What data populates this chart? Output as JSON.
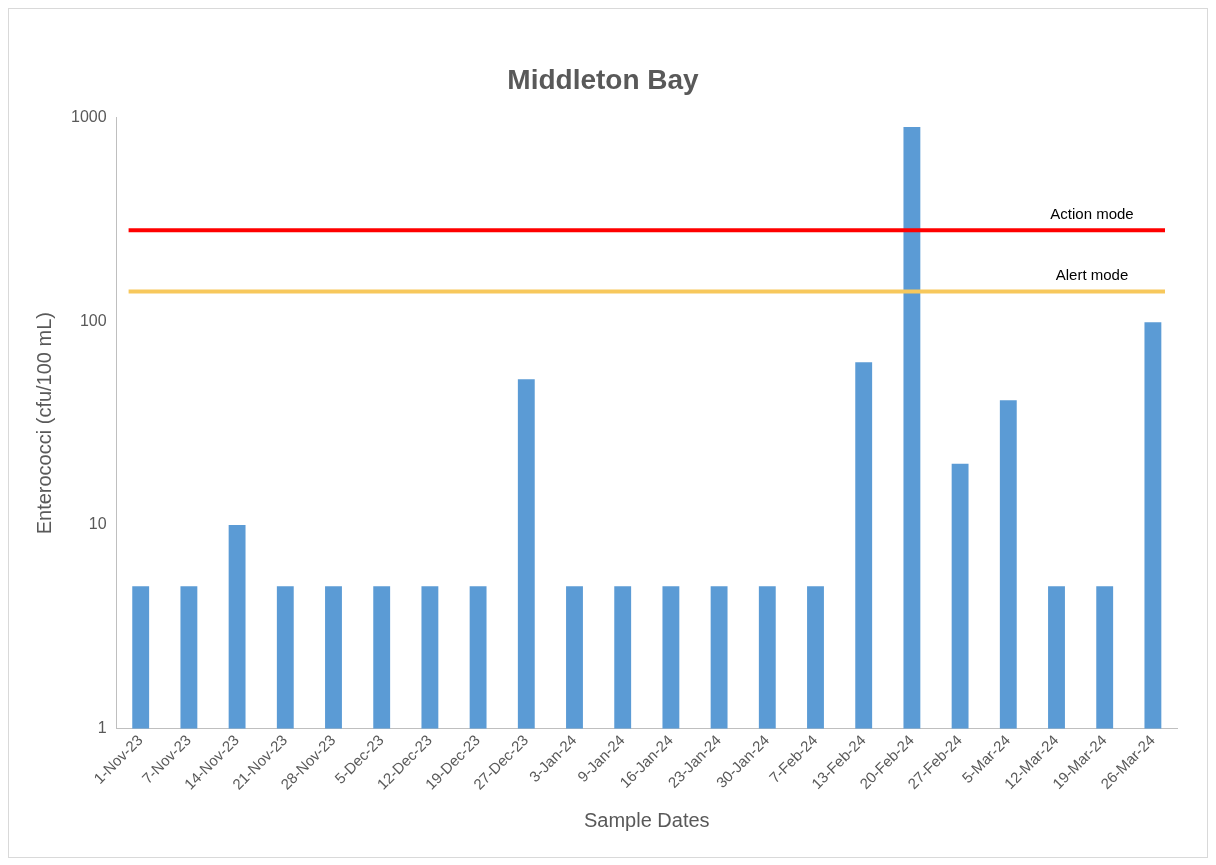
{
  "chart_data": {
    "type": "bar",
    "title": "Middleton Bay",
    "xlabel": "Sample Dates",
    "ylabel": "Enterococci (cfu/100 mL)",
    "categories": [
      "1-Nov-23",
      "7-Nov-23",
      "14-Nov-23",
      "21-Nov-23",
      "28-Nov-23",
      "5-Dec-23",
      "12-Dec-23",
      "19-Dec-23",
      "27-Dec-23",
      "3-Jan-24",
      "9-Jan-24",
      "16-Jan-24",
      "23-Jan-24",
      "30-Jan-24",
      "7-Feb-24",
      "13-Feb-24",
      "20-Feb-24",
      "27-Feb-24",
      "5-Mar-24",
      "12-Mar-24",
      "19-Mar-24",
      "26-Mar-24"
    ],
    "values": [
      5,
      5,
      10,
      5,
      5,
      5,
      5,
      5,
      52,
      5,
      5,
      5,
      5,
      5,
      5,
      63,
      900,
      20,
      41,
      5,
      5,
      99
    ],
    "color": "#5b9bd5",
    "log": "y",
    "ylim": [
      1,
      1000
    ],
    "yticks": [
      1,
      10,
      100,
      1000
    ],
    "grid": false,
    "legend": false,
    "ref_lines": [
      {
        "axis": "y",
        "value": 280,
        "label": "Action mode",
        "color": "#ff0000"
      },
      {
        "axis": "y",
        "value": 140,
        "label": "Alert mode",
        "color": "#f7c85c"
      }
    ]
  }
}
